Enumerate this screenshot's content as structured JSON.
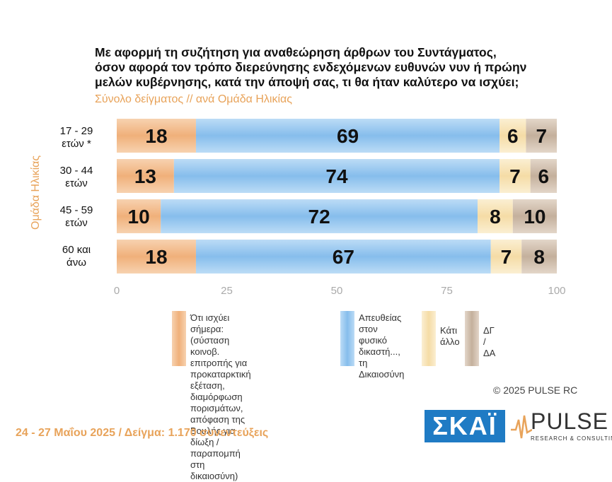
{
  "title_lines": [
    "Με αφορμή τη συζήτηση για αναθεώρηση άρθρων του Συντάγματος,",
    "όσον αφορά τον τρόπο διερεύνησης ενδεχόμενων ευθυνών νυν ή πρώην",
    "μελών κυβέρνησης, κατά την άποψή σας, τι θα ήταν καλύτερο να ισχύει;"
  ],
  "subtitle": "Σύνολο δείγματος // ανά Ομάδα Ηλικίας",
  "y_axis_title": "Ομάδα Ηλικίας",
  "categories": [
    {
      "line1": "17 - 29",
      "line2": "ετών *"
    },
    {
      "line1": "30 - 44",
      "line2": "ετών"
    },
    {
      "line1": "45 - 59",
      "line2": "ετών"
    },
    {
      "line1": "60 και",
      "line2": "άνω"
    }
  ],
  "legend": [
    {
      "lines": [
        "Ότι ισχύει σήμερα: (σύσταση κοινοβ.",
        "επιτροπής για προκαταρκτική",
        "εξέταση, διαμόρφωση πορισμάτων,",
        "απόφαση της Βουλής για δίωξη /",
        "παραπομπή στη δικαιοσύνη)"
      ]
    },
    {
      "lines": [
        "Απευθείας",
        "στον φυσικό",
        "δικαστή...,",
        "τη Δικαιοσύνη"
      ]
    },
    {
      "lines": [
        "Κάτι",
        "άλλο"
      ]
    },
    {
      "lines": [
        "ΔΓ /",
        "ΔΑ"
      ]
    }
  ],
  "colors": {
    "series1": "#f2b98a",
    "series2": "#8dc2ee",
    "series3": "#f7e2b3",
    "series4": "#cdbba9",
    "accent": "#e8a35a"
  },
  "copyright": "©  2025  PULSE RC",
  "footer": "24 - 27 Μαΐου 2025  /  Δείγμα:  1.170 συνεντεύξεις",
  "logos": {
    "skai": "ΣΚΑΪ",
    "pulse": "PULSE",
    "pulse_sub": "RESEARCH & CONSULTING"
  },
  "chart_data": {
    "type": "bar",
    "orientation": "horizontal-stacked",
    "categories": [
      "17 - 29 ετών *",
      "30 - 44 ετών",
      "45 - 59 ετών",
      "60 και άνω"
    ],
    "series": [
      {
        "name": "Ότι ισχύει σήμερα: (σύσταση κοινοβ. επιτροπής για προκαταρκτική εξέταση, διαμόρφωση πορισμάτων, απόφαση της Βουλής για δίωξη / παραπομπή στη δικαιοσύνη)",
        "values": [
          18,
          13,
          10,
          18
        ]
      },
      {
        "name": "Απευθείας στον φυσικό δικαστή..., τη Δικαιοσύνη",
        "values": [
          69,
          74,
          72,
          67
        ]
      },
      {
        "name": "Κάτι άλλο",
        "values": [
          6,
          7,
          8,
          7
        ]
      },
      {
        "name": "ΔΓ / ΔΑ",
        "values": [
          7,
          6,
          10,
          8
        ]
      }
    ],
    "xlim": [
      0,
      100
    ],
    "xticks": [
      0,
      25,
      50,
      75,
      100
    ],
    "grid": false,
    "legend_position": "bottom"
  }
}
